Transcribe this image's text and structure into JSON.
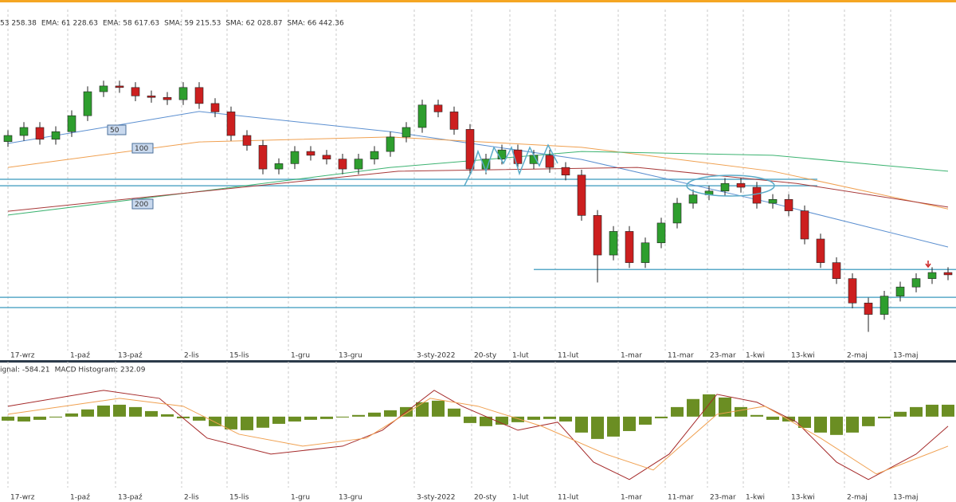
{
  "chart_data": [
    {
      "type": "candlestick",
      "legend": [
        {
          "text": "53 258.38",
          "color": "#c0392b"
        },
        {
          "text": "EMA: 61 228.63",
          "color": "#b0413e"
        },
        {
          "text": "EMA: 58 617.63",
          "color": "#7a8a2a"
        },
        {
          "text": "SMA: 59 215.53",
          "color": "#3a78c2"
        },
        {
          "text": "SMA: 62 028.87",
          "color": "#e8893a"
        },
        {
          "text": "SMA: 66 442.36",
          "color": "#2e9e4e"
        }
      ],
      "xlim": [
        -0.5,
        59.5
      ],
      "ylim": [
        27000,
        72000
      ],
      "grid": true,
      "xticks": [
        {
          "value": 0,
          "label": "17-wrz"
        },
        {
          "value": 3.75,
          "label": "1-paź"
        },
        {
          "value": 6.75,
          "label": "13-paź"
        },
        {
          "value": 10.9,
          "label": "2-lis"
        },
        {
          "value": 13.75,
          "label": "15-lis"
        },
        {
          "value": 17.6,
          "label": "1-gru"
        },
        {
          "value": 20.6,
          "label": "13-gru"
        },
        {
          "value": 25.5,
          "label": "3-sty-2022"
        },
        {
          "value": 29.1,
          "label": "20-sty"
        },
        {
          "value": 31.5,
          "label": "1-lut"
        },
        {
          "value": 34.35,
          "label": "11-lut"
        },
        {
          "value": 38.3,
          "label": "1-mar"
        },
        {
          "value": 41.25,
          "label": "11-mar"
        },
        {
          "value": 43.9,
          "label": "23-mar"
        },
        {
          "value": 46.15,
          "label": "1-kwi"
        },
        {
          "value": 49,
          "label": "13-kwi"
        },
        {
          "value": 52.5,
          "label": "2-maj"
        },
        {
          "value": 55.4,
          "label": "13-maj"
        }
      ],
      "up_color": "#2e9e2e",
      "down_color": "#cc1f1f",
      "x": [
        0,
        1,
        2,
        3,
        4,
        5,
        6,
        7,
        8,
        9,
        10,
        11,
        12,
        13,
        14,
        15,
        16,
        17,
        18,
        19,
        20,
        21,
        22,
        23,
        24,
        25,
        26,
        27,
        28,
        29,
        30,
        31,
        32,
        33,
        34,
        35,
        36,
        37,
        38,
        39,
        40,
        41,
        42,
        43,
        44,
        45,
        46,
        47,
        48,
        49,
        50,
        51,
        52,
        53,
        54,
        55,
        56,
        57,
        58,
        59
      ],
      "open": [
        55500,
        56300,
        57350,
        55800,
        56800,
        58900,
        62050,
        62800,
        62600,
        61500,
        61300,
        61000,
        62600,
        60500,
        59400,
        56300,
        55000,
        51900,
        52600,
        54200,
        53700,
        53200,
        51900,
        53200,
        54200,
        56100,
        57350,
        60300,
        59400,
        57100,
        51900,
        53200,
        54400,
        52600,
        53700,
        52100,
        51100,
        45800,
        40600,
        43700,
        39600,
        42200,
        44800,
        47400,
        48500,
        49000,
        50000,
        49500,
        47400,
        47900,
        46400,
        42700,
        39600,
        37500,
        34300,
        32800,
        35200,
        36400,
        37500,
        38300
      ],
      "high": [
        57000,
        58050,
        58050,
        57500,
        59600,
        62750,
        63500,
        63500,
        63300,
        62200,
        62000,
        63300,
        63300,
        61200,
        60100,
        57000,
        55700,
        53300,
        54900,
        54900,
        54400,
        53900,
        53900,
        54900,
        56800,
        58050,
        61000,
        61000,
        60100,
        57800,
        53900,
        55100,
        55100,
        54400,
        54400,
        52800,
        51800,
        46500,
        44400,
        44400,
        42900,
        45500,
        48100,
        49200,
        49700,
        50700,
        50700,
        50200,
        48600,
        48600,
        47100,
        43400,
        40300,
        38200,
        35000,
        35900,
        37100,
        38200,
        39000,
        39000
      ],
      "low": [
        54800,
        55600,
        55100,
        55100,
        56100,
        58200,
        61350,
        61900,
        60800,
        60600,
        60300,
        60300,
        59800,
        58700,
        55600,
        54300,
        51200,
        51200,
        51900,
        53000,
        52500,
        51200,
        51200,
        52500,
        53500,
        55400,
        56650,
        58700,
        56400,
        51200,
        51200,
        52500,
        51900,
        51900,
        51400,
        50400,
        45100,
        37000,
        39900,
        38900,
        38900,
        41500,
        44100,
        46700,
        47800,
        48300,
        48800,
        46700,
        46700,
        45700,
        42000,
        38900,
        36800,
        33600,
        30500,
        32100,
        34500,
        35700,
        36800,
        37300
      ],
      "close": [
        56300,
        57350,
        55800,
        56800,
        58900,
        62050,
        62800,
        62600,
        61500,
        61300,
        61000,
        62600,
        60500,
        59400,
        56300,
        55000,
        51900,
        52600,
        54200,
        53700,
        53200,
        51900,
        53200,
        54200,
        56100,
        57350,
        60300,
        59400,
        57100,
        51900,
        53200,
        54400,
        52600,
        53700,
        52100,
        51100,
        45800,
        40600,
        43700,
        39600,
        42200,
        44800,
        47400,
        48500,
        49000,
        50000,
        49500,
        47400,
        47900,
        46400,
        42700,
        39600,
        37500,
        34300,
        32800,
        35200,
        36400,
        37500,
        38300,
        38000
      ],
      "series": [
        {
          "name": "50",
          "color": "#5b8fd0",
          "x": [
            0,
            12,
            24,
            36,
            48,
            59
          ],
          "values": [
            55250,
            59450,
            56800,
            53150,
            47400,
            41650
          ]
        },
        {
          "name": "100",
          "color": "#f0a050",
          "x": [
            0,
            12,
            24,
            36,
            48,
            59
          ],
          "values": [
            52100,
            55450,
            56100,
            54750,
            51600,
            46650
          ]
        },
        {
          "name": "200",
          "color": "#3cb371",
          "x": [
            0,
            12,
            24,
            36,
            48,
            59
          ],
          "values": [
            45850,
            48950,
            52100,
            54200,
            53700,
            51600
          ]
        },
        {
          "color": "#a83a3a",
          "x": [
            0,
            24.5,
            39.5,
            49.5,
            59
          ],
          "values": [
            46350,
            51600,
            52100,
            50000,
            46900
          ]
        }
      ],
      "hlines": [
        50550,
        49700,
        38700,
        35050,
        33700
      ],
      "hline_color": "#5aaac8"
    },
    {
      "type": "macd",
      "legend": [
        {
          "text": "ignal: -584.21",
          "color": "#e8893a"
        },
        {
          "text": "MACD Histogram: 232.09",
          "color": "#6b8e23"
        }
      ],
      "xlim": [
        -0.5,
        59.5
      ],
      "ylim": [
        -5700,
        3500
      ],
      "grid": true,
      "xticks": [
        {
          "value": 0,
          "label": "17-wrz"
        },
        {
          "value": 3.75,
          "label": "1-paź"
        },
        {
          "value": 6.75,
          "label": "13-paź"
        },
        {
          "value": 10.9,
          "label": "2-lis"
        },
        {
          "value": 13.75,
          "label": "15-lis"
        },
        {
          "value": 17.6,
          "label": "1-gru"
        },
        {
          "value": 20.6,
          "label": "13-gru"
        },
        {
          "value": 25.5,
          "label": "3-sty-2022"
        },
        {
          "value": 29.1,
          "label": "20-sty"
        },
        {
          "value": 31.5,
          "label": "1-lut"
        },
        {
          "value": 34.35,
          "label": "11-lut"
        },
        {
          "value": 38.3,
          "label": "1-mar"
        },
        {
          "value": 41.25,
          "label": "11-mar"
        },
        {
          "value": 43.9,
          "label": "23-mar"
        },
        {
          "value": 46.15,
          "label": "1-kwi"
        },
        {
          "value": 49,
          "label": "13-kwi"
        },
        {
          "value": 52.5,
          "label": "2-maj"
        },
        {
          "value": 55.4,
          "label": "13-maj"
        }
      ],
      "histogram": {
        "color": "#6b8e23",
        "x": [
          0,
          1,
          2,
          3,
          4,
          5,
          6,
          7,
          8,
          9,
          10,
          11,
          12,
          13,
          14,
          15,
          16,
          17,
          18,
          19,
          20,
          21,
          22,
          23,
          24,
          25,
          26,
          27,
          28,
          29,
          30,
          31,
          32,
          33,
          34,
          35,
          36,
          37,
          38,
          39,
          40,
          41,
          42,
          43,
          44,
          45,
          46,
          47,
          48,
          49,
          50,
          51,
          52,
          53,
          54,
          55,
          56,
          57,
          58,
          59
        ],
        "values": [
          -290,
          -350,
          -230,
          -60,
          230,
          520,
          800,
          860,
          690,
          400,
          170,
          -120,
          -290,
          -690,
          -920,
          -980,
          -800,
          -520,
          -350,
          -230,
          -170,
          -60,
          120,
          290,
          460,
          690,
          1040,
          1150,
          580,
          -460,
          -690,
          -580,
          -400,
          -230,
          -170,
          -350,
          -1150,
          -1610,
          -1440,
          -1040,
          -580,
          -120,
          690,
          1270,
          1610,
          1380,
          690,
          120,
          -230,
          -350,
          -810,
          -1150,
          -1320,
          -1150,
          -690,
          -120,
          350,
          690,
          860,
          860
        ]
      },
      "series": [
        {
          "color": "#a52a2a",
          "x": [
            0,
            6,
            9.5,
            12.5,
            16.5,
            21,
            23.5,
            26.75,
            28.5,
            32,
            34.5,
            36.75,
            39,
            41.5,
            44.5,
            47,
            49.5,
            52,
            54,
            57,
            59
          ],
          "values": [
            750,
            1900,
            1320,
            -1550,
            -2700,
            -2130,
            -980,
            1900,
            750,
            -980,
            -400,
            -3280,
            -4540,
            -2700,
            1610,
            1040,
            -400,
            -3280,
            -4540,
            -2700,
            -690
          ]
        },
        {
          "color": "#f0a050",
          "x": [
            0,
            7,
            11,
            14.5,
            18.5,
            22.5,
            26.5,
            29.5,
            33.5,
            37.5,
            40.5,
            44.5,
            47.5,
            51,
            54.5,
            59
          ],
          "values": [
            170,
            1320,
            750,
            -1270,
            -2130,
            -1550,
            1320,
            750,
            -690,
            -2700,
            -3850,
            170,
            750,
            -1550,
            -4140,
            -2130
          ]
        }
      ]
    }
  ]
}
